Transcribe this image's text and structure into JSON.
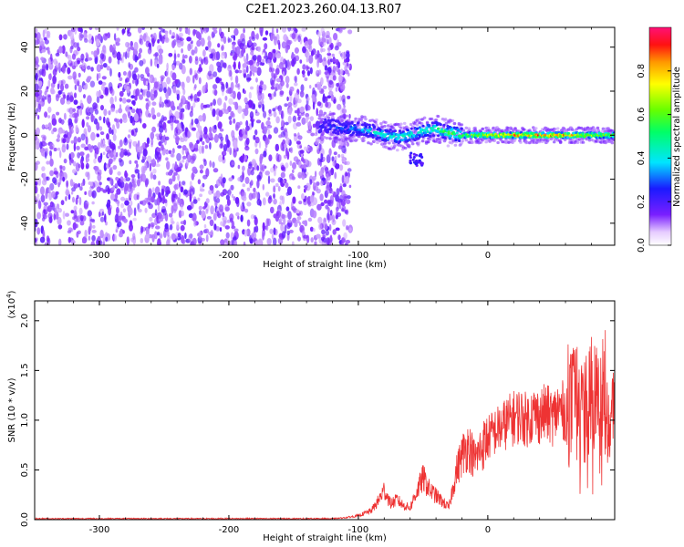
{
  "title": "C2E1.2023.260.04.13.R07",
  "chart_data": [
    {
      "type": "heatmap",
      "title": "C2E1.2023.260.04.13.R07",
      "xlabel": "Height of straight line (km)",
      "ylabel": "Frequency (Hz)",
      "xlim": [
        -350,
        98
      ],
      "ylim": [
        -50,
        49
      ],
      "xticks": [
        -300,
        -200,
        -100,
        0
      ],
      "yticks": [
        -40,
        -20,
        0,
        20,
        40
      ],
      "noise_region_x": [
        -350,
        -112
      ],
      "signal_ridge": {
        "x": [
          -130,
          -120,
          -110,
          -100,
          -90,
          -80,
          -70,
          -60,
          -50,
          -40,
          -30,
          -20,
          -10,
          0,
          10,
          20,
          30,
          40,
          50,
          60,
          70,
          80,
          90,
          98
        ],
        "frequency_hz": [
          4,
          4,
          3,
          3,
          2,
          0,
          -1,
          0,
          2,
          3,
          1,
          0,
          0,
          0,
          0,
          0,
          0,
          0,
          0,
          0,
          0,
          0,
          0,
          0
        ],
        "normalized_amplitude": [
          0.25,
          0.3,
          0.35,
          0.4,
          0.45,
          0.5,
          0.5,
          0.5,
          0.5,
          0.55,
          0.6,
          0.65,
          0.75,
          0.85,
          0.9,
          0.95,
          0.95,
          0.95,
          0.9,
          0.9,
          0.85,
          0.8,
          0.75,
          0.7
        ]
      },
      "colorbar": {
        "label": "Normalized spectral amplitude",
        "range": [
          0,
          1
        ],
        "ticks": [
          "0.0",
          "0.2",
          "0.4",
          "0.6",
          "0.8"
        ]
      }
    },
    {
      "type": "line",
      "xlabel": "Height of straight line (km)",
      "ylabel": "SNR (10 * v/v)",
      "yscale_label": "(x10",
      "yscale_exp": "4",
      "yscale_close": ")",
      "xlim": [
        -350,
        98
      ],
      "ylim": [
        0,
        2.2
      ],
      "xticks": [
        -300,
        -200,
        -100,
        0
      ],
      "yticks": [
        "0.0",
        "0.5",
        "1.0",
        "1.5",
        "2.0"
      ],
      "color": "#ee3333",
      "x": [
        -350,
        -300,
        -250,
        -200,
        -150,
        -120,
        -110,
        -100,
        -90,
        -85,
        -80,
        -75,
        -70,
        -65,
        -60,
        -55,
        -50,
        -45,
        -40,
        -35,
        -30,
        -25,
        -20,
        -15,
        -10,
        -5,
        0,
        5,
        10,
        15,
        20,
        25,
        30,
        35,
        40,
        45,
        50,
        55,
        60,
        65,
        70,
        75,
        80,
        85,
        90,
        95,
        98
      ],
      "y": [
        0.01,
        0.01,
        0.01,
        0.01,
        0.01,
        0.01,
        0.02,
        0.04,
        0.09,
        0.18,
        0.3,
        0.16,
        0.2,
        0.14,
        0.12,
        0.28,
        0.42,
        0.3,
        0.24,
        0.18,
        0.12,
        0.45,
        0.65,
        0.75,
        0.6,
        0.72,
        0.82,
        0.88,
        0.92,
        0.98,
        1.02,
        1.05,
        1.0,
        1.06,
        1.04,
        1.08,
        1.02,
        1.12,
        1.08,
        1.15,
        1.2,
        1.05,
        1.25,
        1.1,
        1.3,
        0.9,
        1.2
      ]
    }
  ]
}
